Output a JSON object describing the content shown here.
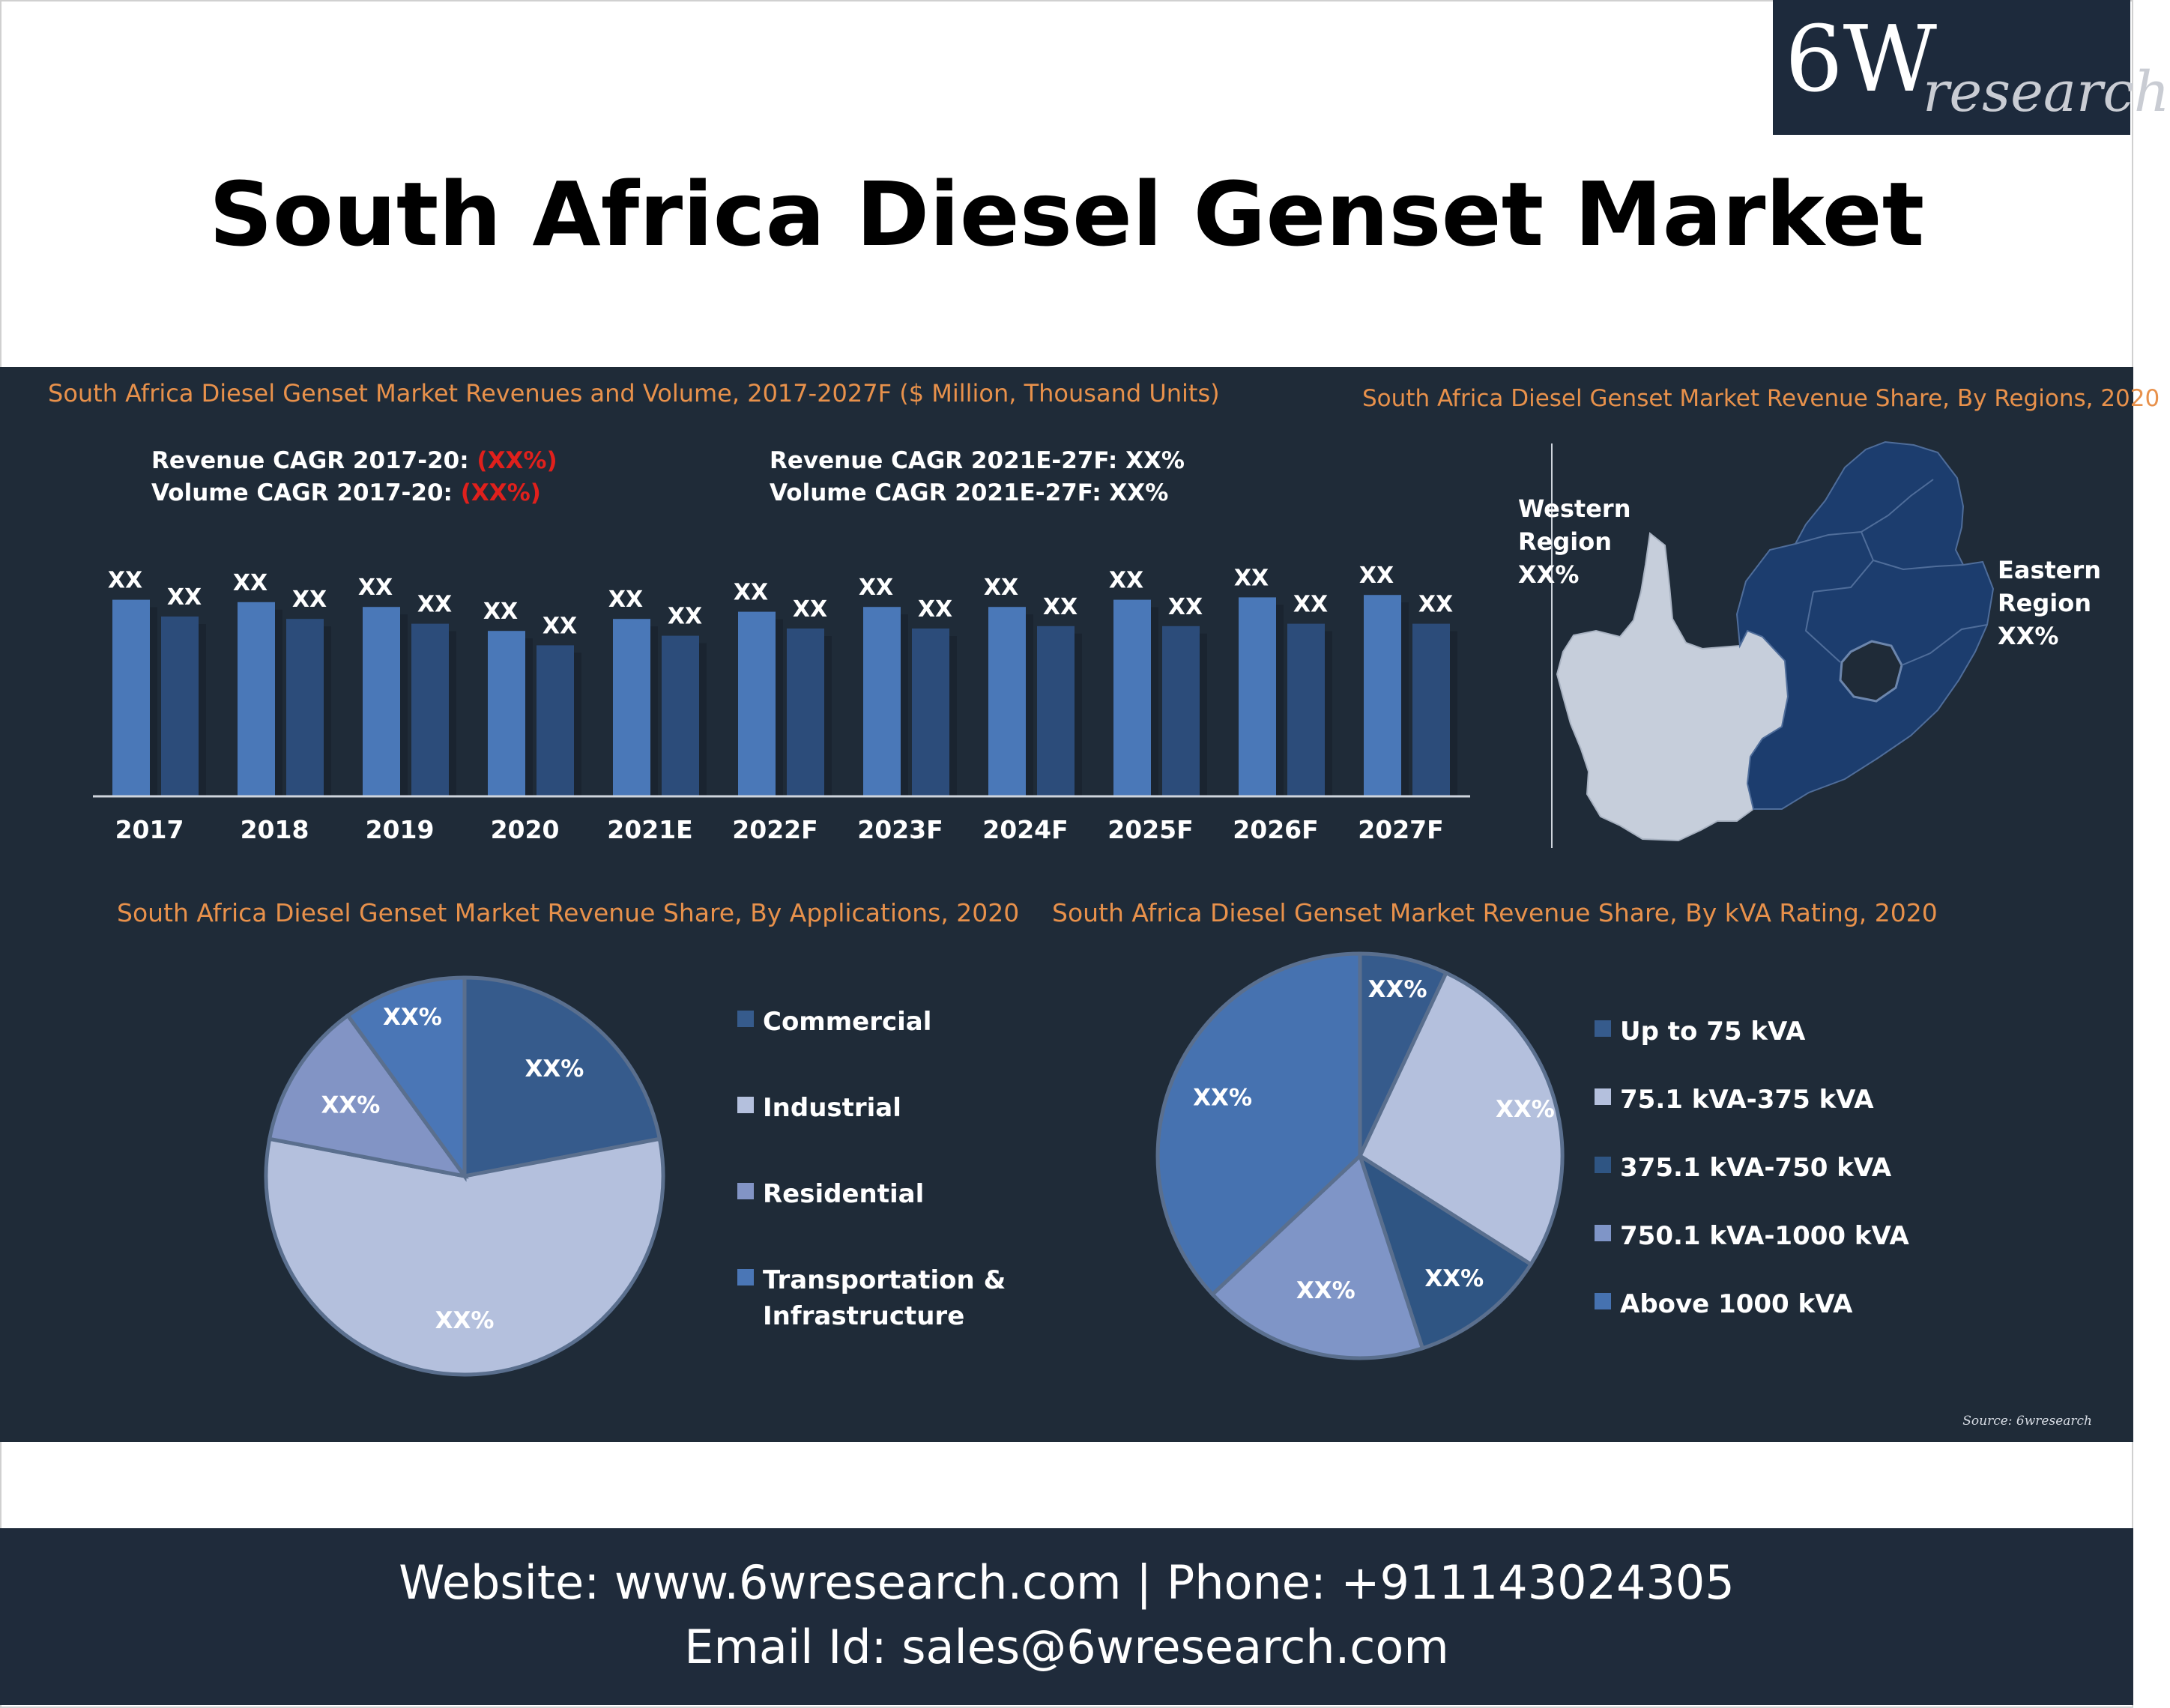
{
  "header": {
    "logo_big": "6W",
    "logo_small": "research",
    "title": "South Africa Diesel Genset Market"
  },
  "bar_panel": {
    "title": "South Africa Diesel Genset Market Revenues and Volume, 2017-2027F ($ Million, Thousand Units)",
    "cagr_hist_rev_label": "Revenue CAGR 2017-20: ",
    "cagr_hist_rev_value": "(XX%)",
    "cagr_hist_vol_label": "Volume CAGR 2017-20: ",
    "cagr_hist_vol_value": "(XX%)",
    "cagr_fc_rev": "Revenue CAGR 2021E-27F: XX%",
    "cagr_fc_vol": "Volume CAGR 2021E-27F: XX%"
  },
  "map_panel": {
    "title": "South Africa Diesel Genset Market Revenue Share, By Regions, 2020",
    "western": [
      "Western",
      "Region",
      "XX%"
    ],
    "eastern": [
      "Eastern",
      "Region",
      "XX%"
    ]
  },
  "source": "Source: 6wresearch",
  "footer": {
    "line1": "Website: www.6wresearch.com | Phone: +911143024305",
    "line2": "Email Id: sales@6wresearch.com"
  },
  "colors": {
    "panel_bg": "#1f2b38",
    "title_orange": "#e8914b",
    "negative_red": "#e0201c",
    "revenue_bar": "#4a78b8",
    "volume_bar": "#2c4c7a",
    "map_west": "#c6cedb",
    "map_east": "#1c3d6e"
  },
  "chart_data": [
    {
      "type": "bar",
      "categories": [
        "2017",
        "2018",
        "2019",
        "2020",
        "2021E",
        "2022F",
        "2023F",
        "2024F",
        "2025F",
        "2026F",
        "2027F"
      ],
      "series": [
        {
          "values": [
            82,
            81,
            79,
            69,
            74,
            77,
            79,
            79,
            82,
            83,
            84
          ],
          "data_labels": [
            "XX",
            "XX",
            "XX",
            "XX",
            "XX",
            "XX",
            "XX",
            "XX",
            "XX",
            "XX",
            "XX"
          ]
        },
        {
          "values": [
            75,
            74,
            72,
            63,
            67,
            70,
            70,
            71,
            71,
            72,
            72
          ],
          "data_labels": [
            "XX",
            "XX",
            "XX",
            "XX",
            "XX",
            "XX",
            "XX",
            "XX",
            "XX",
            "XX",
            "XX"
          ]
        }
      ],
      "ylim": [
        0,
        100
      ],
      "grid": false
    },
    {
      "type": "pie",
      "title": "South Africa Diesel Genset Market Revenue Share, By Applications, 2020",
      "labels": [
        "Commercial",
        "Industrial",
        "Residential",
        "Transportation & Infrastructure"
      ],
      "values": [
        22,
        56,
        12,
        10
      ],
      "data_labels": [
        "XX%",
        "XX%",
        "XX%",
        "XX%"
      ],
      "colors": [
        "#365b8c",
        "#b4c0dd",
        "#8294c5",
        "#4a76b6"
      ],
      "legend_position": "right"
    },
    {
      "type": "pie",
      "title": "South Africa Diesel Genset Market Revenue Share, By kVA Rating, 2020",
      "labels": [
        "Up to 75 kVA",
        "75.1 kVA-375 kVA",
        "375.1 kVA-750 kVA",
        "750.1 kVA-1000 kVA",
        "Above 1000 kVA"
      ],
      "values": [
        7,
        27,
        11,
        18,
        37
      ],
      "data_labels": [
        "XX%",
        "XX%",
        "XX%",
        "XX%",
        "XX%"
      ],
      "colors": [
        "#365b8c",
        "#b4c0dd",
        "#2f5583",
        "#7f95c7",
        "#4672b0"
      ],
      "legend_position": "right"
    }
  ]
}
